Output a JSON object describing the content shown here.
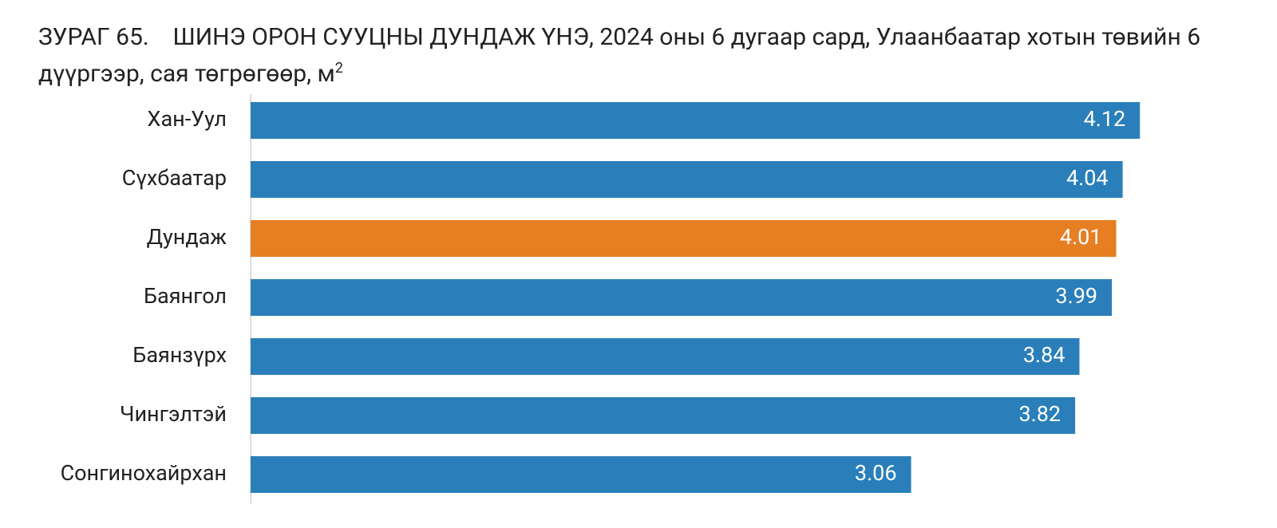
{
  "chart_data": {
    "type": "bar",
    "orientation": "horizontal",
    "figure_label": "ЗУРАГ 65.",
    "title": "ШИНЭ ОРОН СУУЦНЫ ДУНДАЖ ҮНЭ, 2024 оны 6 дугаар сард, Улаанбаатар хотын төвийн 6 дүүргээр, сая төгрөгөөр, м",
    "title_superscript": "2",
    "categories": [
      "Хан-Уул",
      "Сүхбаатар",
      "Дундаж",
      "Баянгол",
      "Баянзүрх",
      "Чингэлтэй",
      "Сонгинохайрхан"
    ],
    "values": [
      4.12,
      4.04,
      4.01,
      3.99,
      3.84,
      3.82,
      3.06
    ],
    "colors": [
      "#2a7fba",
      "#2a7fba",
      "#e67e22",
      "#2a7fba",
      "#2a7fba",
      "#2a7fba",
      "#2a7fba"
    ],
    "xlim": [
      0,
      4.5
    ]
  }
}
